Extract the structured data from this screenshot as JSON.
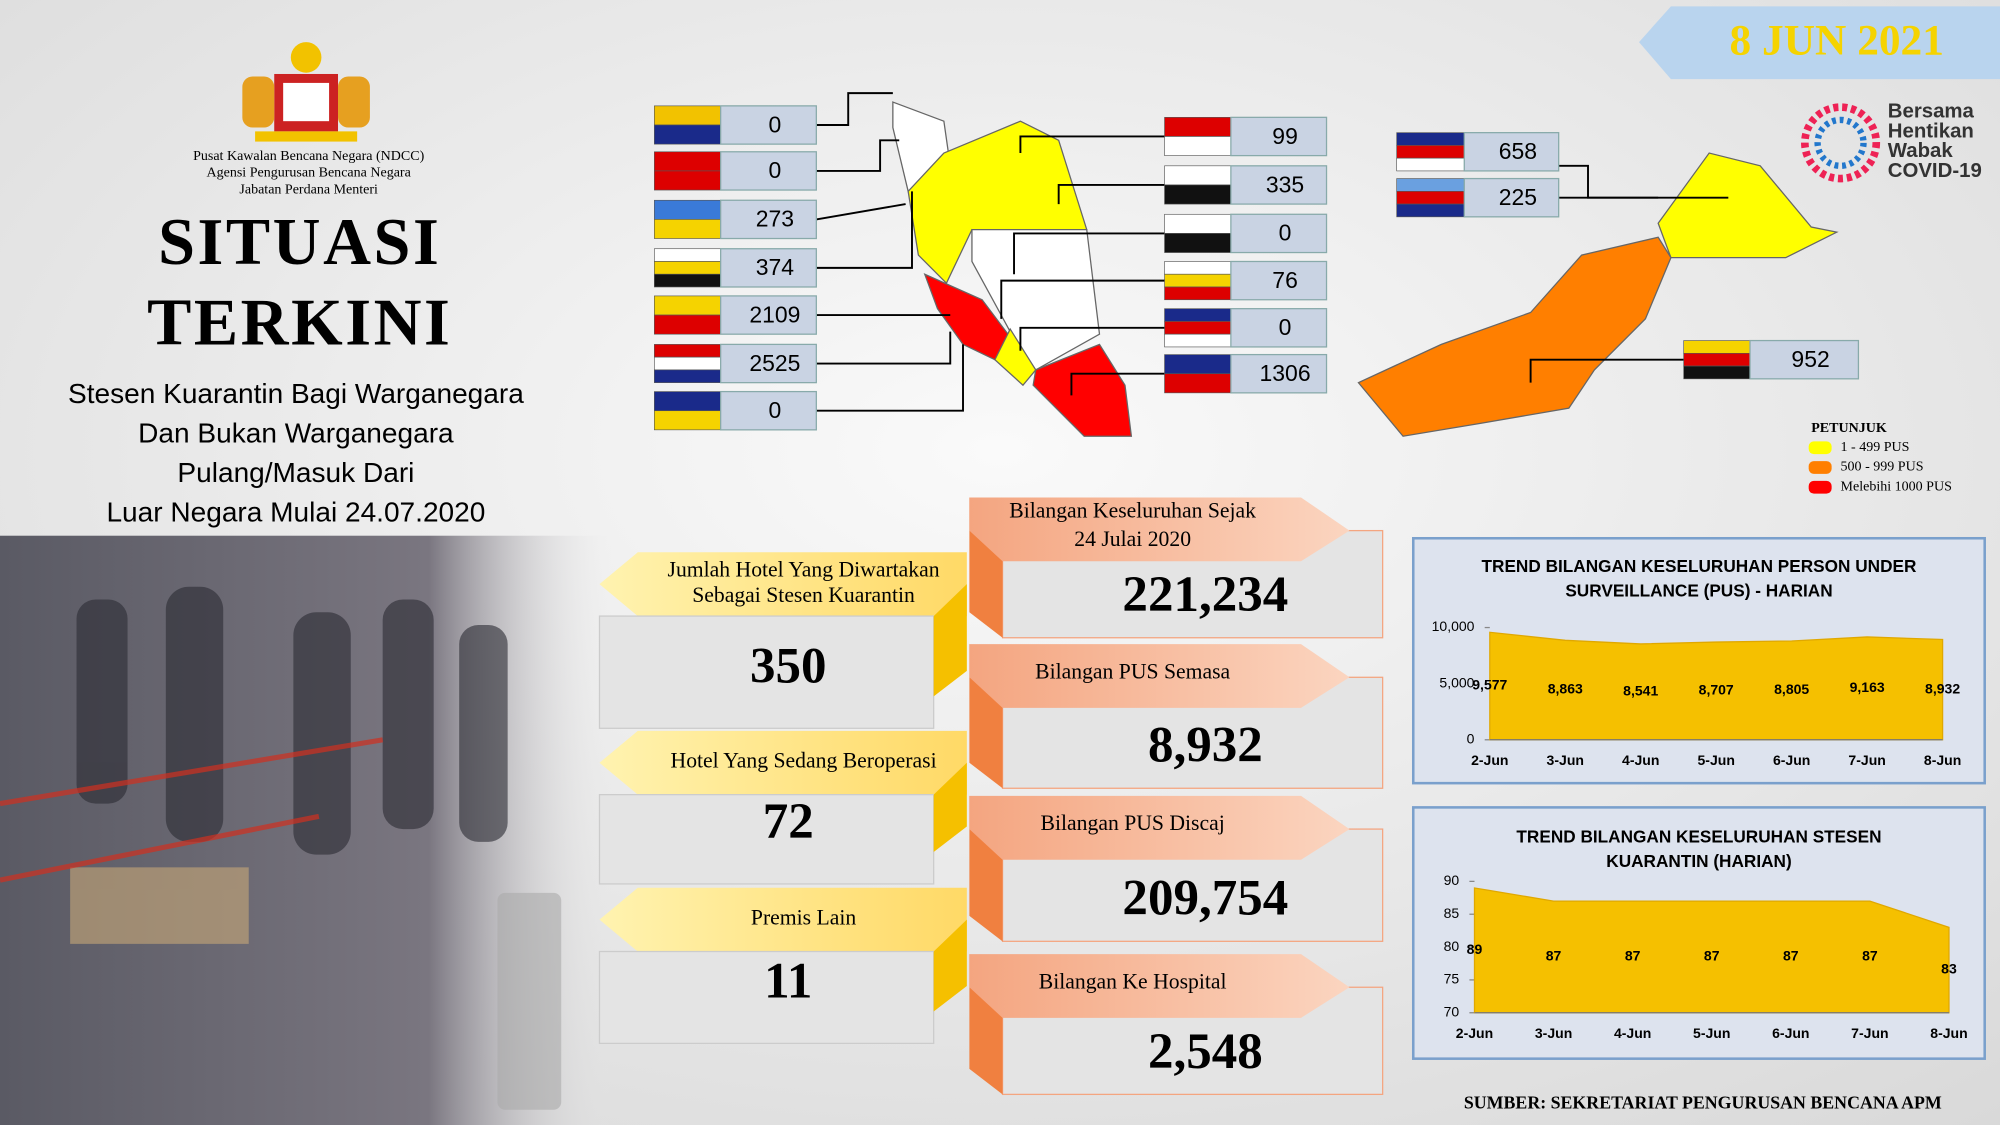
{
  "header": {
    "date": "8 JUN 2021",
    "agency": [
      "Pusat Kawalan Bencana Negara (NDCC)",
      "Agensi Pengurusan Bencana Negara",
      "Jabatan Perdana Menteri"
    ],
    "title": [
      "SITUASI",
      "TERKINI"
    ],
    "subtitle": [
      "Stesen Kuarantin Bagi Warganegara",
      "Dan Bukan Warganegara",
      "Pulang/Masuk Dari",
      "Luar Negara Mulai 24.07.2020"
    ],
    "logo": [
      "Bersama",
      "Hentikan",
      "Wabak",
      "COVID-19"
    ]
  },
  "states": {
    "left": [
      0,
      0,
      273,
      374,
      2109,
      2525,
      0
    ],
    "right": [
      99,
      335,
      0,
      76,
      0,
      1306
    ],
    "east": [
      658,
      225,
      952
    ]
  },
  "legend": {
    "title": "PETUNJUK",
    "items": [
      {
        "label": "1 - 499 PUS",
        "color": "#ffff00"
      },
      {
        "label": "500 - 999 PUS",
        "color": "#ff7f00"
      },
      {
        "label": "Melebihi 1000 PUS",
        "color": "#ff0000"
      }
    ]
  },
  "hotels": [
    {
      "label": [
        "Jumlah Hotel Yang Diwartakan",
        "Sebagai Stesen Kuarantin"
      ],
      "value": 350
    },
    {
      "label": [
        "Hotel Yang Sedang Beroperasi"
      ],
      "value": 72
    },
    {
      "label": [
        "Premis Lain"
      ],
      "value": 11
    }
  ],
  "pus": [
    {
      "label": [
        "Bilangan Keseluruhan Sejak",
        "24 Julai 2020"
      ],
      "value": "221,234"
    },
    {
      "label": [
        "Bilangan PUS Semasa"
      ],
      "value": "8,932"
    },
    {
      "label": [
        "Bilangan PUS Discaj"
      ],
      "value": "209,754"
    },
    {
      "label": [
        "Bilangan Ke Hospital"
      ],
      "value": "2,548"
    }
  ],
  "chart_data": [
    {
      "type": "area",
      "title": [
        "TREND BILANGAN KESELURUHAN PERSON UNDER",
        "SURVEILLANCE (PUS) - HARIAN"
      ],
      "categories": [
        "2-Jun",
        "3-Jun",
        "4-Jun",
        "5-Jun",
        "6-Jun",
        "7-Jun",
        "8-Jun"
      ],
      "values": [
        9577,
        8863,
        8541,
        8707,
        8805,
        9163,
        8932
      ],
      "value_labels": [
        "9,577",
        "8,863",
        "8,541",
        "8,707",
        "8,805",
        "9,163",
        "8,932"
      ],
      "color": "#f5c000",
      "ylim": [
        0,
        10000
      ],
      "yticks": [
        0,
        {
          "value": 5000,
          "label": "5,000"
        },
        {
          "value": 10000,
          "label": "10,000"
        }
      ]
    },
    {
      "type": "area",
      "title": [
        "TREND BILANGAN KESELURUHAN STESEN",
        "KUARANTIN (HARIAN)"
      ],
      "categories": [
        "2-Jun",
        "3-Jun",
        "4-Jun",
        "5-Jun",
        "6-Jun",
        "7-Jun",
        "8-Jun"
      ],
      "values": [
        89,
        87,
        87,
        87,
        87,
        87,
        83
      ],
      "color": "#f5c000",
      "ylim": [
        70,
        90
      ],
      "yticks": [
        70,
        75,
        80,
        85,
        90
      ]
    }
  ],
  "footer": "SUMBER: SEKRETARIAT PENGURUSAN BENCANA APM"
}
